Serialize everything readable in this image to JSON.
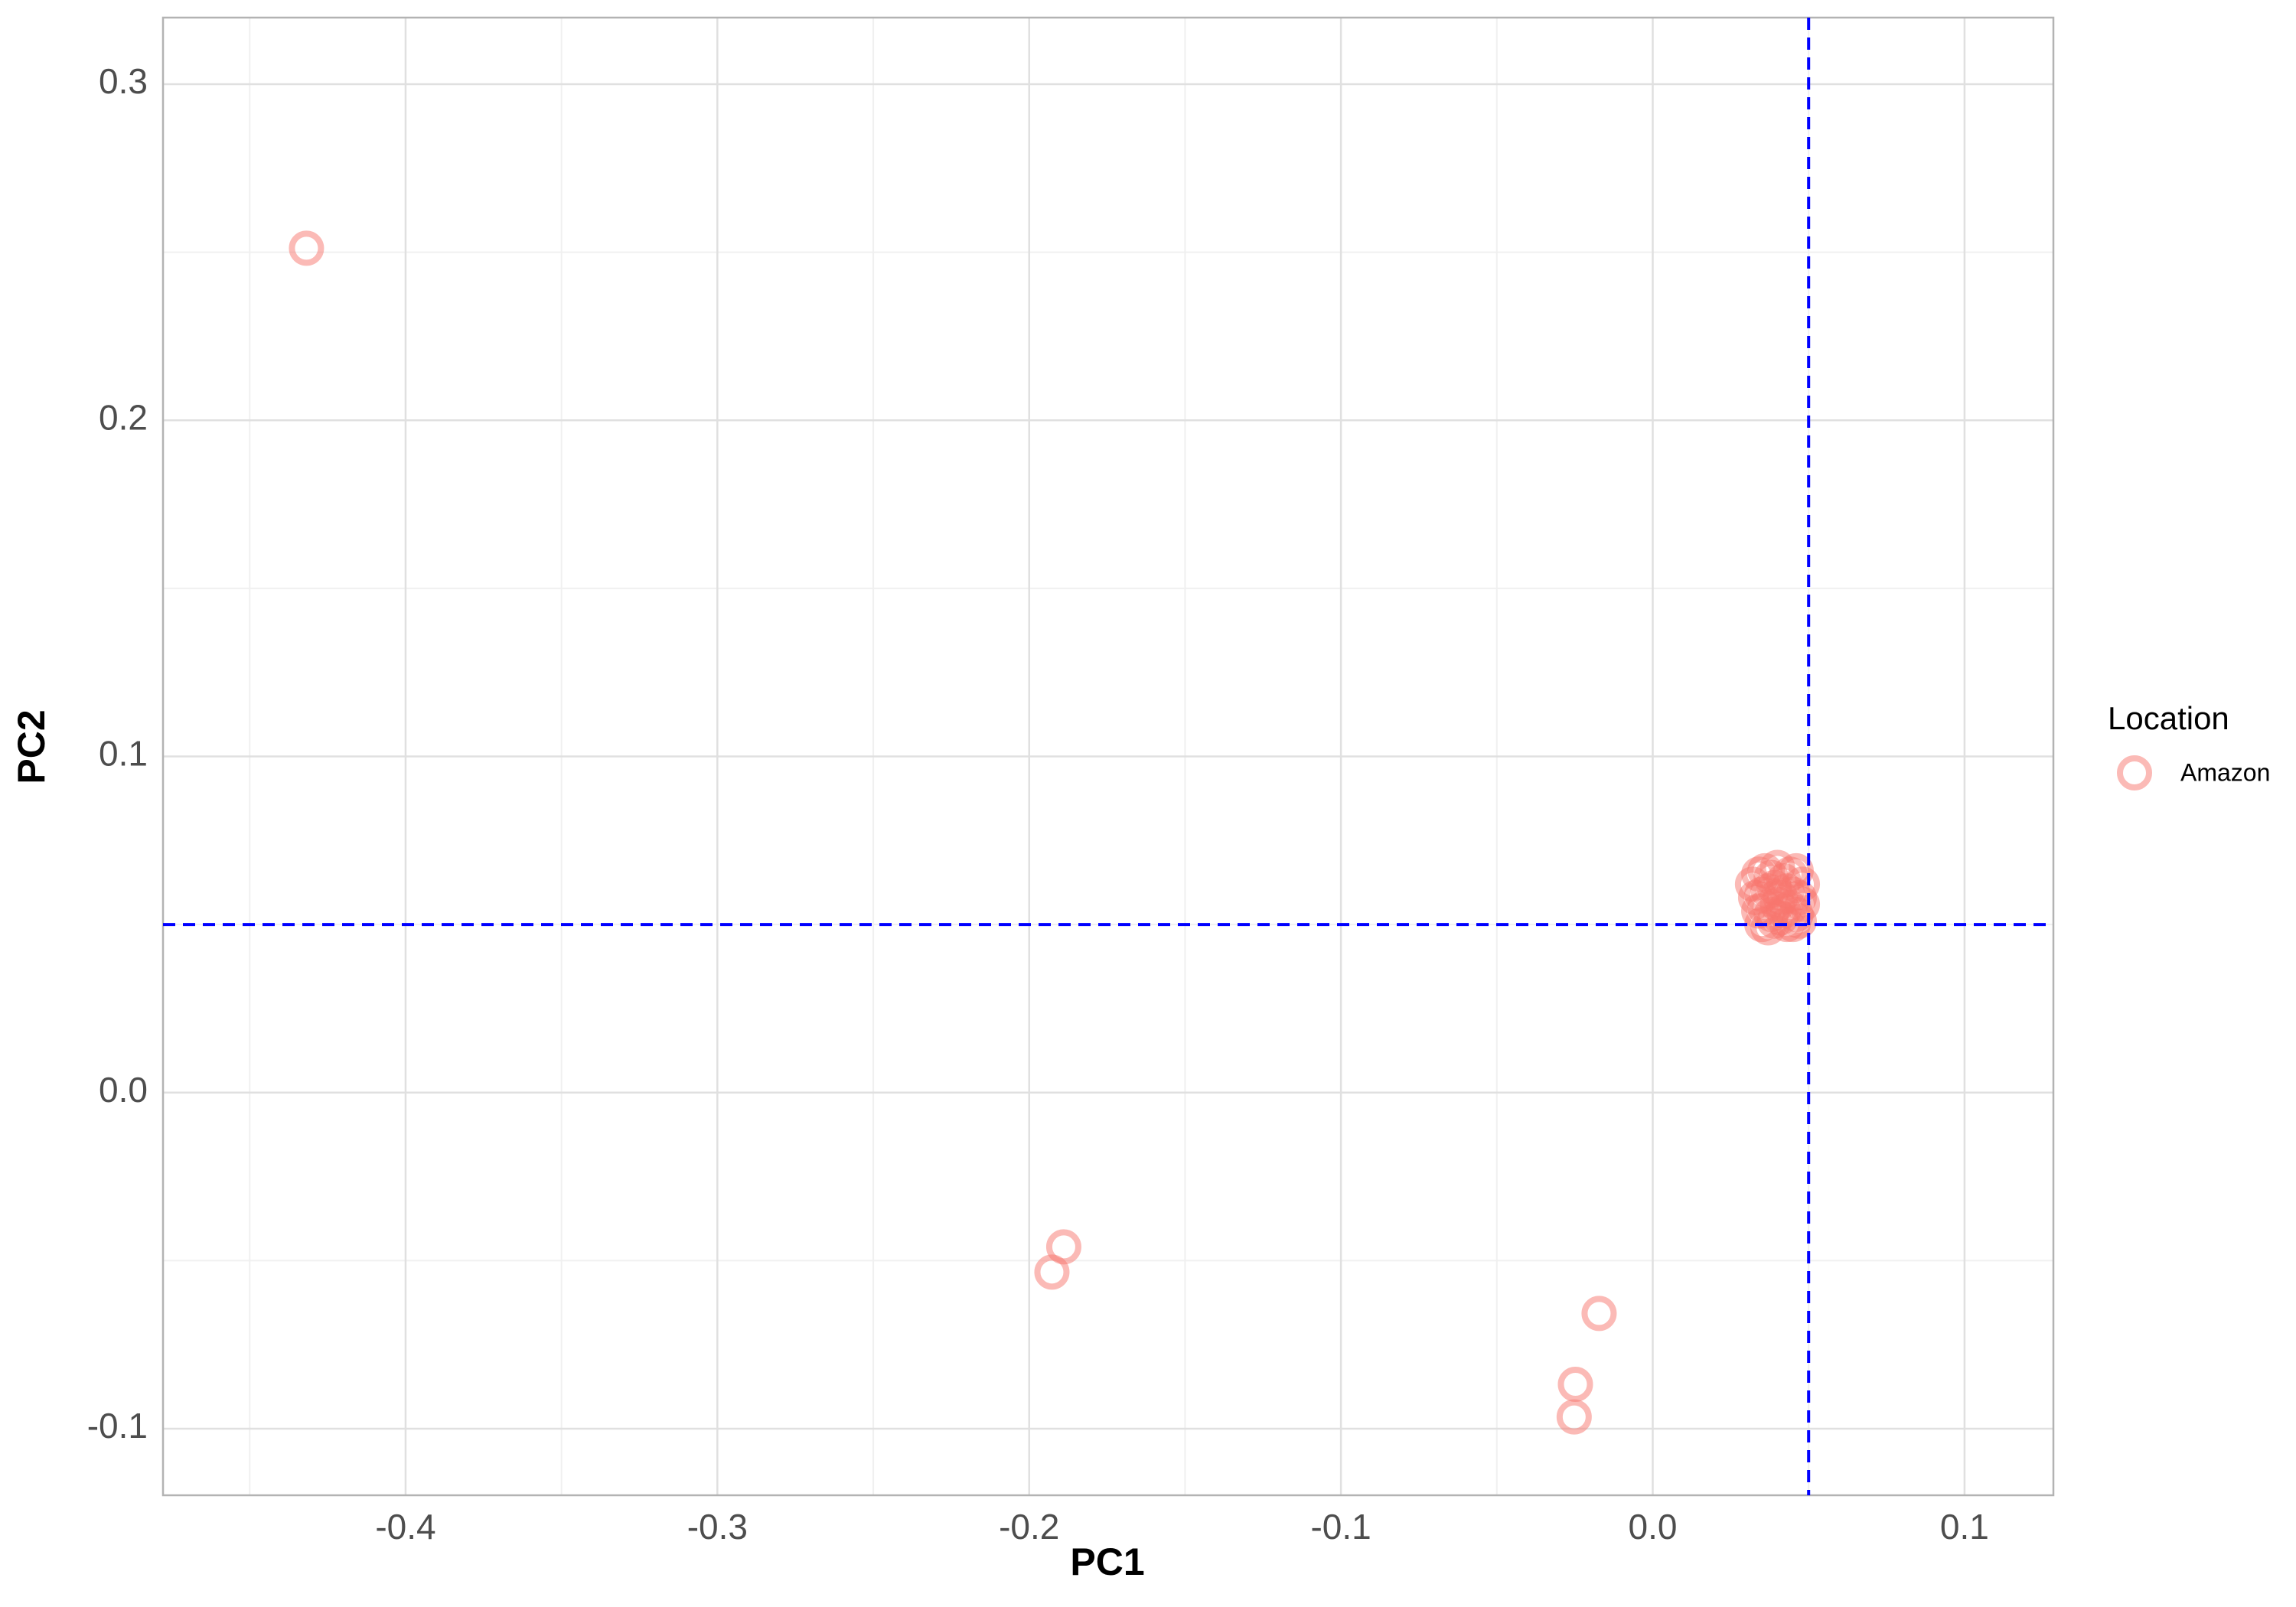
{
  "chart_data": {
    "type": "scatter",
    "x_label": "PC1",
    "y_label": "PC2",
    "xlim": [
      -0.4778,
      0.1285
    ],
    "ylim": [
      -0.1198,
      0.3198
    ],
    "xticks": [
      -0.4,
      -0.3,
      -0.2,
      -0.1,
      {
        "value": 0,
        "label": "0.0"
      },
      0.1
    ],
    "yticks": [
      -0.1,
      {
        "value": 0,
        "label": "0.0"
      },
      0.1,
      0.2,
      0.3
    ],
    "x_minor_breaks": [
      -0.45,
      -0.35,
      -0.25,
      -0.15,
      -0.05,
      0.05
    ],
    "y_minor_breaks": [
      -0.05,
      0.05,
      0.15,
      0.25
    ],
    "grid": true,
    "vline": 0.05,
    "hline": 0.05,
    "reference_line_color": "#0000ff",
    "legend_title": "Location",
    "legend_position": "right",
    "series": [
      {
        "name": "Amazon",
        "color": "#F8766D",
        "x": [
          -0.4318,
          -0.1889,
          -0.1927,
          -0.0172,
          -0.0248,
          -0.0252,
          0.032,
          0.034,
          0.036,
          0.038,
          0.04,
          0.042,
          0.044,
          0.046,
          0.048,
          0.033,
          0.035,
          0.037,
          0.039,
          0.041,
          0.043,
          0.045,
          0.047,
          0.034,
          0.036,
          0.038,
          0.04,
          0.042,
          0.044,
          0.046,
          0.048,
          0.035,
          0.039,
          0.043,
          0.047,
          0.037,
          0.041,
          0.045
        ],
        "y": [
          0.2512,
          -0.0459,
          -0.0534,
          -0.0657,
          -0.0868,
          -0.0965,
          0.062,
          0.065,
          0.066,
          0.064,
          0.067,
          0.063,
          0.065,
          0.066,
          0.062,
          0.058,
          0.059,
          0.06,
          0.061,
          0.058,
          0.06,
          0.059,
          0.058,
          0.054,
          0.055,
          0.053,
          0.056,
          0.054,
          0.055,
          0.053,
          0.056,
          0.05,
          0.051,
          0.05,
          0.051,
          0.049,
          0.052,
          0.05
        ]
      }
    ]
  }
}
